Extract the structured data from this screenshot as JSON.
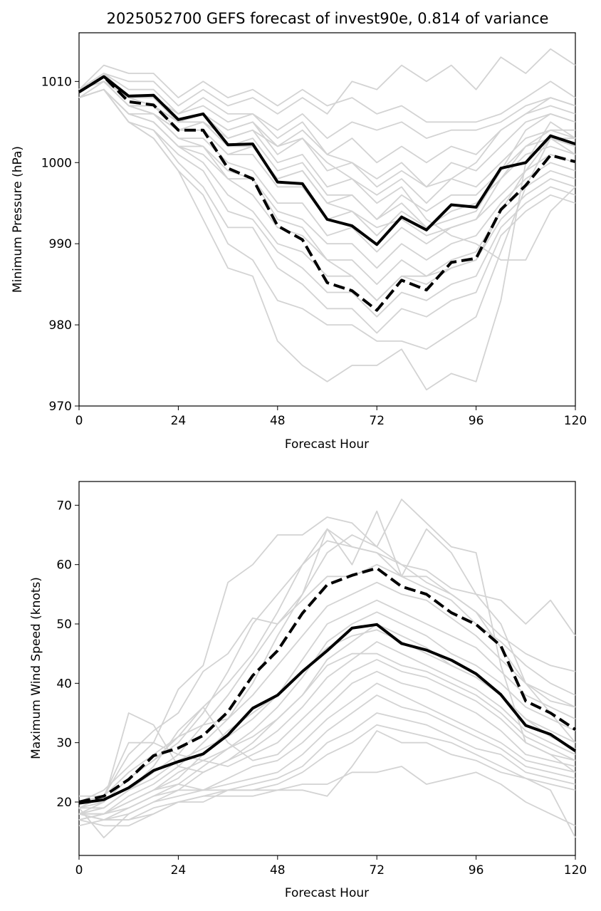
{
  "chart_data": [
    {
      "type": "line",
      "title": "2025052700 GEFS forecast of invest90e, 0.814 of variance",
      "xlabel": "Forecast Hour",
      "ylabel": "Minimum Pressure (hPa)",
      "xlim": [
        0,
        120
      ],
      "ylim": [
        970,
        1016
      ],
      "xticks": [
        0,
        24,
        48,
        72,
        96,
        120
      ],
      "yticks": [
        970,
        980,
        990,
        1000,
        1010
      ],
      "x": [
        0,
        6,
        12,
        18,
        24,
        30,
        36,
        42,
        48,
        54,
        60,
        66,
        72,
        78,
        84,
        90,
        96,
        102,
        108,
        114,
        120
      ],
      "colors": {
        "ensemble": "#d3d3d3",
        "highlight": "#000000"
      },
      "ensemble": [
        [
          1009,
          1012,
          1011,
          1011,
          1008,
          1010,
          1008,
          1009,
          1007,
          1009,
          1007,
          1008,
          1006,
          1007,
          1005,
          1005,
          1005,
          1006,
          1008,
          1010,
          1008
        ],
        [
          1009,
          1011,
          1010,
          1010,
          1007,
          1009,
          1007,
          1008,
          1006,
          1008,
          1006,
          1010,
          1009,
          1012,
          1010,
          1012,
          1009,
          1013,
          1011,
          1014,
          1012
        ],
        [
          1009,
          1011,
          1009,
          1009,
          1006,
          1008,
          1006,
          1006,
          1004,
          1006,
          1003,
          1005,
          1004,
          1005,
          1003,
          1004,
          1004,
          1005,
          1007,
          1008,
          1007
        ],
        [
          1009,
          1011,
          1008,
          1008,
          1006,
          1007,
          1005,
          1006,
          1003,
          1005,
          1001,
          1003,
          1000,
          1002,
          1000,
          1002,
          1001,
          1004,
          1006,
          1007,
          1006
        ],
        [
          1009,
          1010,
          1008,
          1008,
          1005,
          1006,
          1004,
          1005,
          1001,
          1003,
          999,
          1000,
          998,
          1000,
          997,
          1000,
          999,
          1002,
          1005,
          1006,
          1005
        ],
        [
          1009,
          1010,
          1008,
          1007,
          1005,
          1006,
          1003,
          1004,
          1000,
          1001,
          997,
          998,
          996,
          998,
          995,
          998,
          997,
          1000,
          1003,
          1004,
          1003
        ],
        [
          1009,
          1010,
          1007,
          1007,
          1004,
          1005,
          1002,
          1002,
          998,
          999,
          995,
          996,
          993,
          996,
          994,
          996,
          996,
          999,
          1002,
          1003,
          1002
        ],
        [
          1008,
          1010,
          1007,
          1006,
          1004,
          1004,
          1001,
          1001,
          997,
          997,
          993,
          994,
          991,
          994,
          992,
          994,
          995,
          998,
          1001,
          1002,
          1001
        ],
        [
          1008,
          1010,
          1007,
          1006,
          1003,
          1003,
          1000,
          999,
          995,
          995,
          991,
          992,
          989,
          992,
          990,
          992,
          993,
          996,
          999,
          1001,
          1000
        ],
        [
          1008,
          1009,
          1006,
          1006,
          1003,
          1002,
          999,
          998,
          994,
          993,
          990,
          990,
          987,
          990,
          988,
          990,
          991,
          995,
          998,
          1000,
          999
        ],
        [
          1008,
          1009,
          1006,
          1005,
          1002,
          1001,
          998,
          996,
          992,
          991,
          988,
          988,
          985,
          988,
          986,
          988,
          989,
          994,
          997,
          999,
          998
        ],
        [
          1008,
          1009,
          1006,
          1005,
          1002,
          1000,
          996,
          994,
          990,
          989,
          986,
          986,
          983,
          986,
          985,
          987,
          988,
          993,
          996,
          998,
          997
        ],
        [
          1008,
          1009,
          1005,
          1004,
          1001,
          999,
          994,
          993,
          989,
          987,
          984,
          984,
          981,
          984,
          983,
          985,
          986,
          992,
          995,
          997,
          996
        ],
        [
          1008,
          1009,
          1005,
          1004,
          1000,
          997,
          992,
          992,
          987,
          985,
          982,
          982,
          979,
          982,
          981,
          983,
          984,
          991,
          994,
          996,
          995
        ],
        [
          1008,
          1009,
          1005,
          1003,
          999,
          996,
          990,
          988,
          983,
          982,
          980,
          980,
          978,
          978,
          977,
          979,
          981,
          989,
          997,
          1003,
          1001
        ],
        [
          1008,
          1009,
          1005,
          1003,
          999,
          993,
          987,
          986,
          978,
          975,
          973,
          975,
          975,
          977,
          972,
          974,
          973,
          983,
          1000,
          1005,
          1003
        ],
        [
          1009,
          1010,
          1007,
          1006,
          1004,
          1005,
          1003,
          1004,
          1002,
          1003,
          1000,
          998,
          995,
          997,
          993,
          991,
          990,
          988,
          988,
          994,
          997
        ],
        [
          1009,
          1011,
          1008,
          1008,
          1005,
          1006,
          1004,
          1005,
          1002,
          1004,
          1001,
          1000,
          997,
          999,
          997,
          998,
          1000,
          1004,
          1006,
          1008,
          1007
        ],
        [
          1009,
          1010,
          1008,
          1007,
          1005,
          1005,
          1002,
          1003,
          999,
          1000,
          996,
          996,
          993,
          995,
          992,
          993,
          994,
          999,
          1004,
          1006,
          1005
        ],
        [
          1009,
          1010,
          1007,
          1007,
          1004,
          1004,
          1001,
          1002,
          998,
          999,
          995,
          994,
          992,
          993,
          991,
          992,
          993,
          998,
          1002,
          1004,
          1004
        ],
        [
          1008,
          1009,
          1006,
          1005,
          1002,
          1002,
          998,
          998,
          993,
          992,
          988,
          986,
          983,
          986,
          986,
          987,
          988,
          994,
          999,
          1003,
          1003
        ]
      ],
      "series": [
        {
          "values": [
            1008.7,
            1010.6,
            1008.2,
            1008.3,
            1005.3,
            1006.0,
            1002.2,
            1002.3,
            997.6,
            997.4,
            993.0,
            992.2,
            989.9,
            993.3,
            991.7,
            994.8,
            994.5,
            999.3,
            1000.0,
            1003.3,
            1002.3
          ],
          "style": "solid"
        },
        {
          "values": [
            1008.7,
            1010.6,
            1007.5,
            1007.1,
            1004.0,
            1004.0,
            999.3,
            998.0,
            992.2,
            990.5,
            985.2,
            984.2,
            981.8,
            985.5,
            984.3,
            987.7,
            988.2,
            994.2,
            997.2,
            1000.9,
            1000.1
          ],
          "style": "dashed"
        }
      ]
    },
    {
      "type": "line",
      "xlabel": "Forecast Hour",
      "ylabel": "Maximum Wind Speed (knots)",
      "xlim": [
        0,
        120
      ],
      "ylim": [
        11,
        74
      ],
      "xticks": [
        0,
        24,
        48,
        72,
        96,
        120
      ],
      "yticks": [
        20,
        30,
        40,
        50,
        60,
        70
      ],
      "x": [
        0,
        6,
        12,
        18,
        24,
        30,
        36,
        42,
        48,
        54,
        60,
        66,
        72,
        78,
        84,
        90,
        96,
        102,
        108,
        114,
        120
      ],
      "colors": {
        "ensemble": "#d3d3d3",
        "highlight": "#000000"
      },
      "ensemble": [
        [
          20,
          22,
          26,
          30,
          39,
          43,
          57,
          60,
          65,
          65,
          68,
          67,
          63,
          71,
          67,
          63,
          62,
          43,
          30,
          28,
          25
        ],
        [
          19,
          21,
          28,
          32,
          35,
          42,
          45,
          51,
          50,
          55,
          66,
          60,
          69,
          58,
          66,
          62,
          55,
          50,
          40,
          35,
          30
        ],
        [
          18,
          20,
          24,
          27,
          30,
          35,
          42,
          50,
          55,
          60,
          64,
          63,
          62,
          60,
          59,
          56,
          55,
          54,
          50,
          54,
          48
        ],
        [
          18,
          19,
          22,
          25,
          28,
          33,
          38,
          44,
          50,
          54,
          58,
          58,
          60,
          58,
          58,
          55,
          52,
          48,
          45,
          43,
          42
        ],
        [
          17,
          18,
          21,
          23,
          26,
          30,
          34,
          38,
          43,
          48,
          53,
          55,
          57,
          55,
          54,
          51,
          48,
          44,
          40,
          38,
          36
        ],
        [
          17,
          18,
          20,
          22,
          24,
          28,
          32,
          35,
          38,
          44,
          50,
          52,
          54,
          52,
          50,
          48,
          46,
          42,
          38,
          36,
          34
        ],
        [
          16,
          17,
          19,
          21,
          23,
          26,
          29,
          32,
          36,
          41,
          47,
          50,
          52,
          50,
          48,
          45,
          43,
          40,
          36,
          34,
          32
        ],
        [
          19,
          14,
          18,
          20,
          22,
          25,
          27,
          30,
          34,
          38,
          44,
          47,
          50,
          48,
          46,
          43,
          41,
          38,
          34,
          32,
          30
        ],
        [
          20,
          20,
          35,
          33,
          26,
          25,
          27,
          29,
          32,
          36,
          41,
          44,
          47,
          45,
          43,
          41,
          39,
          36,
          32,
          30,
          28
        ],
        [
          21,
          21,
          30,
          30,
          28,
          27,
          26,
          28,
          30,
          34,
          38,
          42,
          44,
          42,
          41,
          39,
          37,
          34,
          30,
          28,
          27
        ],
        [
          19,
          19,
          22,
          26,
          32,
          36,
          30,
          27,
          28,
          32,
          36,
          40,
          42,
          40,
          39,
          37,
          35,
          32,
          28,
          27,
          26
        ],
        [
          18,
          18,
          20,
          22,
          23,
          22,
          24,
          26,
          27,
          30,
          34,
          37,
          40,
          38,
          36,
          34,
          32,
          30,
          27,
          26,
          25
        ],
        [
          18,
          18,
          19,
          21,
          22,
          22,
          23,
          24,
          25,
          28,
          32,
          35,
          38,
          36,
          35,
          33,
          31,
          29,
          26,
          25,
          24
        ],
        [
          18,
          17,
          18,
          20,
          21,
          22,
          22,
          23,
          24,
          26,
          30,
          32,
          35,
          34,
          33,
          31,
          29,
          28,
          25,
          24,
          23
        ],
        [
          18,
          17,
          17,
          19,
          20,
          21,
          22,
          22,
          23,
          25,
          28,
          30,
          33,
          32,
          31,
          30,
          28,
          26,
          24,
          23,
          22
        ],
        [
          17,
          16,
          16,
          18,
          20,
          20,
          22,
          22,
          22,
          22,
          21,
          26,
          32,
          30,
          30,
          28,
          27,
          25,
          24,
          22,
          14
        ],
        [
          18,
          17,
          17,
          18,
          20,
          21,
          21,
          21,
          22,
          23,
          23,
          25,
          25,
          26,
          23,
          24,
          25,
          23,
          20,
          18,
          16
        ],
        [
          19,
          20,
          24,
          27,
          31,
          33,
          34,
          40,
          48,
          55,
          62,
          65,
          63,
          60,
          57,
          55,
          52,
          46,
          40,
          37,
          36
        ],
        [
          20,
          21,
          25,
          28,
          31,
          36,
          40,
          45,
          52,
          60,
          66,
          63,
          62,
          58,
          56,
          54,
          50,
          47,
          43,
          40,
          38
        ],
        [
          18,
          19,
          22,
          24,
          27,
          29,
          31,
          34,
          38,
          42,
          46,
          48,
          49,
          47,
          45,
          43,
          41,
          38,
          34,
          31,
          29
        ],
        [
          17,
          18,
          20,
          22,
          25,
          27,
          29,
          31,
          34,
          38,
          43,
          45,
          45,
          43,
          42,
          40,
          38,
          35,
          31,
          29,
          27
        ]
      ],
      "series": [
        {
          "values": [
            19.8,
            20.4,
            22.4,
            25.3,
            26.8,
            28.1,
            31.3,
            35.8,
            38.0,
            42.0,
            45.5,
            49.3,
            49.9,
            46.7,
            45.6,
            43.9,
            41.6,
            38.1,
            32.9,
            31.4,
            28.6
          ],
          "style": "solid"
        },
        {
          "values": [
            20.0,
            21.0,
            23.8,
            27.8,
            29.1,
            31.2,
            35.2,
            41.3,
            45.5,
            51.8,
            56.6,
            58.2,
            59.4,
            56.3,
            55.0,
            51.9,
            49.9,
            46.3,
            37.0,
            35.0,
            32.2
          ],
          "style": "dashed"
        }
      ]
    }
  ]
}
